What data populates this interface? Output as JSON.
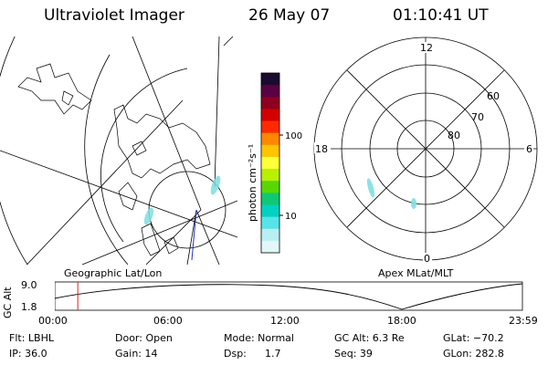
{
  "header": {
    "instrument": "Ultraviolet Imager",
    "date": "26 May 07",
    "time": "01:10:41 UT"
  },
  "colorbar": {
    "unit_label": "photon cm⁻²s⁻¹",
    "ticks": [
      "100",
      "10"
    ],
    "scale": "log",
    "colors": [
      "#1b0b2e",
      "#5a0044",
      "#8e0020",
      "#d40000",
      "#ff2a00",
      "#ff8800",
      "#ffc400",
      "#ffff3a",
      "#b8f000",
      "#58d800",
      "#10c872",
      "#00d2c0",
      "#56e4e8",
      "#b8eff2",
      "#e2f7f8"
    ]
  },
  "left_map": {
    "caption": "Geographic Lat/Lon"
  },
  "right_map": {
    "caption": "Apex MLat/MLT",
    "mlt_labels": {
      "top": "12",
      "right": "6",
      "bottom": "0",
      "left": "18"
    },
    "lat_labels": [
      "60",
      "70",
      "80"
    ]
  },
  "alt_plot": {
    "ylabel": "GC Alt",
    "y_ticks": [
      "9.0",
      "1.8"
    ],
    "x_ticks": [
      "00:00",
      "06:00",
      "12:00",
      "18:00",
      "23:59"
    ],
    "marker_time_hours": 1.18,
    "marker_color": "#e02020"
  },
  "info": {
    "flt": "Flt: LBHL",
    "ip": "IP: 36.0",
    "door": "Door: Open",
    "gain": "Gain: 14",
    "mode": "Mode: Normal",
    "dsp_label": "Dsp:",
    "dsp_value": "1.7",
    "gc_alt": "GC Alt: 6.3 Re",
    "seq": "Seq: 39",
    "glat": "GLat: −70.2",
    "glon": "GLon: 282.8"
  }
}
